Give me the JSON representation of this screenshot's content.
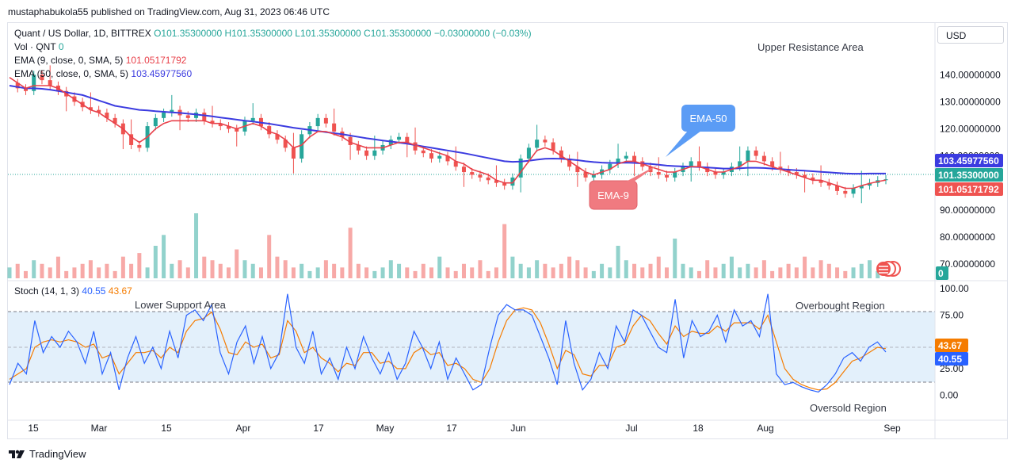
{
  "publisher_line": "mustaphabukola55 published on TradingView.com, Aug 31, 2023 06:46 UTC",
  "legend": {
    "symbol": "Quant / US Dollar, 1D, BITTREX",
    "ohlc": {
      "o": "O101.35300000",
      "h": "H101.35300000",
      "l": "L101.35300000",
      "c": "C101.35300000",
      "chg": "−0.03000000 (−0.03%)"
    },
    "volume": {
      "label": "Vol · QNT",
      "value": "0"
    },
    "ema9": {
      "label": "EMA (9, close, 0, SMA, 5)",
      "value": "101.05171792"
    },
    "ema50": {
      "label": "EMA (50, close, 0, SMA, 5)",
      "value": "103.45977560"
    }
  },
  "currency_button": "USD",
  "annotations": {
    "upper_resistance": "Upper Resistance Area",
    "lower_support": "Lower Support Area",
    "overbought": "Overbought Region",
    "oversold": "Oversold Region",
    "ema50_callout": "EMA-50",
    "ema9_callout": "EMA-9"
  },
  "price_tags": {
    "ema50": "103.45977560",
    "close": "101.35300000",
    "ema9": "101.05171792",
    "volume": "0"
  },
  "stoch": {
    "label": "Stoch (14, 1, 3)",
    "k": "40.55",
    "d": "43.67",
    "tag_d": "43.67",
    "tag_k": "40.55"
  },
  "colors": {
    "up": "#26a69a",
    "down": "#ef5350",
    "ema9": "#e8404a",
    "ema50": "#3b3be0",
    "stoch_k": "#2962ff",
    "stoch_d": "#f57c00",
    "band": "#e3f0fb",
    "footer_logo": "#131722"
  },
  "chart_data": [
    {
      "type": "candlestick",
      "title": "Quant / US Dollar, 1D, BITTREX",
      "x_tick_labels": [
        "15",
        "Mar",
        "15",
        "Apr",
        "17",
        "May",
        "17",
        "Jun",
        "Jul",
        "18",
        "Aug",
        "Sep"
      ],
      "y_tick_labels": [
        "140.00000000",
        "130.00000000",
        "120.00000000",
        "110.00000000",
        "90.00000000",
        "80.00000000",
        "70.00000000"
      ],
      "ylim": [
        65,
        153
      ],
      "close_path": [
        137,
        135,
        134,
        140,
        138,
        136,
        134,
        132,
        130,
        128,
        127,
        126,
        124,
        122,
        118,
        114,
        113,
        121,
        124,
        126,
        127,
        125,
        124,
        126,
        123,
        122,
        121,
        120,
        119,
        123,
        124,
        121,
        118,
        116,
        113,
        109,
        118,
        121,
        124,
        122,
        119,
        117,
        114,
        112,
        110,
        112,
        114,
        116,
        117,
        115,
        112,
        111,
        109,
        110,
        108,
        106,
        104,
        103,
        102,
        101,
        100,
        99,
        102,
        109,
        113,
        116,
        115,
        112,
        109,
        106,
        104,
        102,
        103,
        105,
        107,
        109,
        110,
        108,
        106,
        104,
        103,
        102,
        104,
        106,
        108,
        106,
        104,
        103,
        104,
        106,
        108,
        112,
        110,
        108,
        106,
        105,
        104,
        103,
        102,
        101,
        100,
        99,
        97,
        96,
        98,
        99,
        100,
        101,
        101.35
      ],
      "ema9_path": [
        139,
        137,
        135,
        136,
        136,
        136,
        135,
        133,
        131,
        129,
        127,
        126,
        124,
        122,
        120,
        117,
        115,
        117,
        120,
        122,
        123,
        123,
        123,
        123,
        123,
        122,
        122,
        121,
        120,
        121,
        122,
        121,
        119,
        118,
        116,
        113,
        114,
        117,
        119,
        119,
        118,
        117,
        115,
        114,
        113,
        113,
        113,
        114,
        115,
        115,
        114,
        113,
        112,
        111,
        110,
        108,
        107,
        105,
        104,
        103,
        101,
        100,
        100,
        104,
        108,
        112,
        113,
        112,
        110,
        108,
        106,
        104,
        103,
        104,
        105,
        107,
        108,
        108,
        107,
        106,
        105,
        104,
        104,
        105,
        106,
        106,
        105,
        104,
        104,
        105,
        106,
        108,
        108,
        107,
        106,
        105,
        104,
        103,
        102,
        101,
        101,
        100,
        99,
        98,
        98,
        99,
        99.8,
        100.5,
        101.05
      ],
      "ema50_path": [
        136,
        135.5,
        135,
        135,
        134.8,
        134.5,
        134,
        133.5,
        133,
        132.5,
        131.5,
        130.5,
        129.5,
        128.5,
        128,
        127.5,
        127,
        126.8,
        126.5,
        126.3,
        126.1,
        125.9,
        125.6,
        125.3,
        125,
        124.6,
        124.2,
        123.8,
        123.4,
        123,
        122.7,
        122.3,
        121.9,
        121.4,
        120.9,
        120.4,
        120,
        119.6,
        119.2,
        118.8,
        118.4,
        118,
        117.5,
        117,
        116.5,
        116.1,
        115.7,
        115.3,
        114.9,
        114.5,
        114,
        113.5,
        113,
        112.5,
        112,
        111.5,
        111,
        110.4,
        109.8,
        109.2,
        108.6,
        108,
        107.8,
        107.9,
        108.2,
        108.6,
        108.9,
        109,
        108.9,
        108.7,
        108.4,
        108,
        107.7,
        107.5,
        107.4,
        107.4,
        107.5,
        107.4,
        107.2,
        107,
        106.7,
        106.4,
        106.2,
        106.1,
        106,
        105.9,
        105.7,
        105.5,
        105.3,
        105.3,
        105.4,
        105.6,
        105.6,
        105.5,
        105.3,
        105.1,
        104.9,
        104.7,
        104.5,
        104.3,
        104.1,
        103.9,
        103.7,
        103.5,
        103.4,
        103.4,
        103.45,
        103.46,
        103.46
      ]
    },
    {
      "type": "bar",
      "title": "Vol · QNT",
      "values": [
        3,
        4,
        2,
        5,
        4,
        3,
        6,
        2,
        3,
        4,
        5,
        3,
        4,
        2,
        6,
        4,
        7,
        3,
        9,
        12,
        4,
        5,
        3,
        18,
        6,
        5,
        4,
        3,
        8,
        5,
        4,
        3,
        12,
        6,
        5,
        3,
        4,
        2,
        3,
        5,
        4,
        3,
        14,
        4,
        3,
        2,
        3,
        5,
        4,
        3,
        2,
        4,
        3,
        6,
        3,
        2,
        4,
        3,
        5,
        2,
        3,
        15,
        6,
        4,
        3,
        5,
        4,
        3,
        4,
        6,
        5,
        3,
        2,
        4,
        3,
        9,
        5,
        4,
        3,
        4,
        6,
        3,
        11,
        4,
        3,
        2,
        5,
        3,
        4,
        6,
        3,
        4,
        3,
        5,
        2,
        3,
        4,
        3,
        6,
        3,
        5,
        4,
        3,
        2,
        3,
        4,
        5,
        2,
        0
      ]
    },
    {
      "type": "line",
      "title": "Stoch (14, 1, 3)",
      "y_tick_labels": [
        "100.00",
        "75.00",
        "25.00",
        "0.00"
      ],
      "ylim": [
        -10,
        100
      ],
      "bands": [
        20,
        80
      ],
      "series": [
        {
          "name": "%K",
          "values": [
            10,
            30,
            20,
            70,
            40,
            55,
            45,
            60,
            50,
            30,
            60,
            20,
            40,
            5,
            35,
            55,
            30,
            45,
            25,
            60,
            35,
            75,
            80,
            70,
            85,
            40,
            20,
            50,
            65,
            30,
            55,
            25,
            40,
            95,
            45,
            30,
            60,
            20,
            35,
            15,
            45,
            25,
            55,
            35,
            20,
            40,
            15,
            30,
            60,
            45,
            25,
            50,
            15,
            35,
            20,
            5,
            10,
            45,
            75,
            85,
            80,
            80,
            75,
            55,
            35,
            10,
            70,
            30,
            5,
            15,
            40,
            25,
            65,
            50,
            80,
            75,
            60,
            45,
            40,
            90,
            35,
            70,
            55,
            60,
            75,
            50,
            80,
            65,
            70,
            55,
            95,
            20,
            10,
            12,
            8,
            5,
            3,
            10,
            20,
            35,
            40,
            32,
            45,
            50,
            40.55
          ]
        },
        {
          "name": "%D",
          "values": [
            15,
            20,
            25,
            45,
            50,
            52,
            50,
            52,
            50,
            45,
            48,
            35,
            38,
            20,
            30,
            40,
            40,
            42,
            35,
            45,
            40,
            60,
            70,
            72,
            78,
            62,
            40,
            38,
            50,
            45,
            48,
            35,
            38,
            70,
            60,
            40,
            45,
            35,
            30,
            22,
            30,
            28,
            40,
            40,
            30,
            32,
            25,
            25,
            40,
            45,
            38,
            40,
            28,
            30,
            25,
            15,
            12,
            25,
            50,
            70,
            80,
            82,
            80,
            68,
            48,
            25,
            42,
            38,
            20,
            18,
            28,
            28,
            45,
            48,
            65,
            75,
            70,
            58,
            48,
            65,
            55,
            60,
            58,
            58,
            65,
            60,
            68,
            68,
            68,
            62,
            75,
            50,
            25,
            15,
            10,
            7,
            5,
            6,
            12,
            22,
            32,
            35,
            40,
            45,
            43.67
          ]
        }
      ]
    }
  ]
}
